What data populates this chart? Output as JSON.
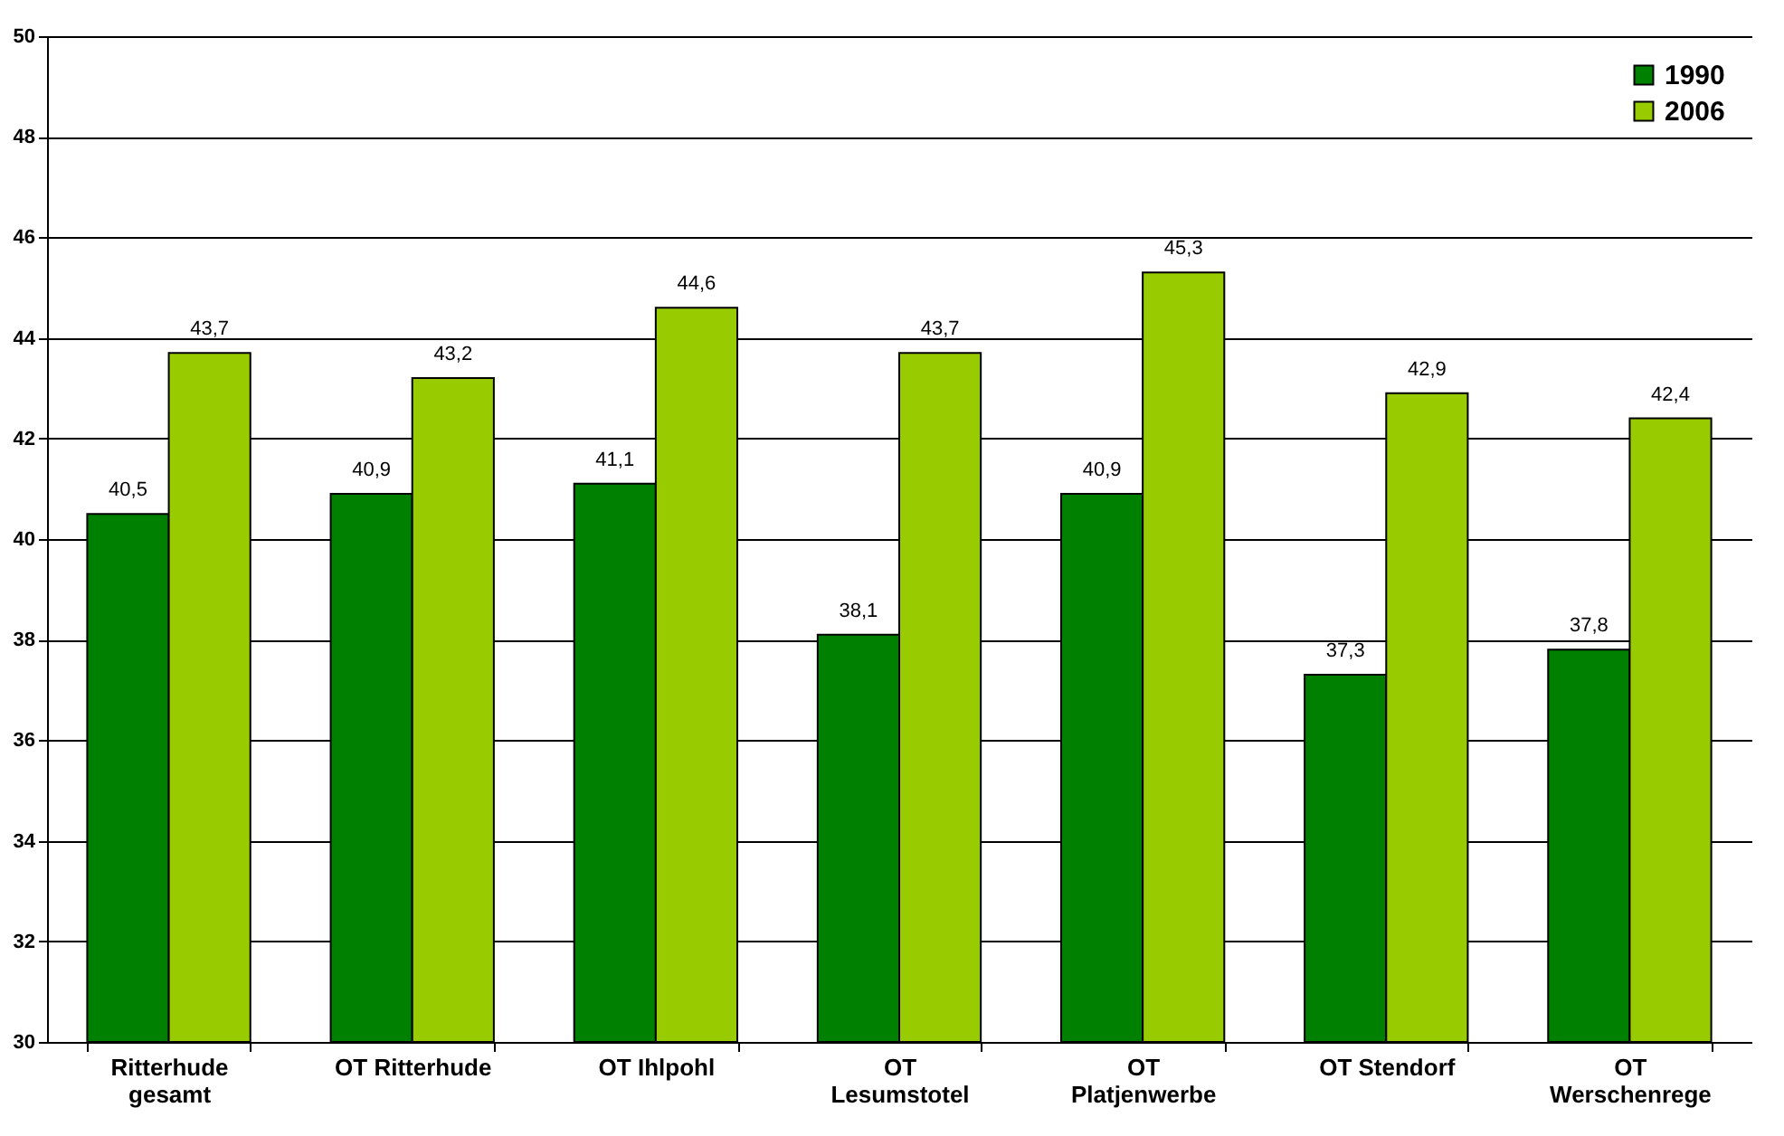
{
  "chart_data": {
    "type": "bar",
    "categories": [
      "Ritterhude gesamt",
      "OT Ritterhude",
      "OT Ihlpohl",
      "OT Lesumstotel",
      "OT Platjenwerbe",
      "OT Stendorf",
      "OT Werschenrege"
    ],
    "series": [
      {
        "name": "1990",
        "color": "#008000",
        "values": [
          40.5,
          40.9,
          41.1,
          38.1,
          40.9,
          37.3,
          37.8
        ],
        "value_labels": [
          "40,5",
          "40,9",
          "41,1",
          "38,1",
          "40,9",
          "37,3",
          "37,8"
        ]
      },
      {
        "name": "2006",
        "color": "#99cc00",
        "values": [
          43.7,
          43.2,
          44.6,
          43.7,
          45.3,
          42.9,
          42.4
        ],
        "value_labels": [
          "43,7",
          "43,2",
          "44,6",
          "43,7",
          "45,3",
          "42,9",
          "42,4"
        ]
      }
    ],
    "ylim": [
      30,
      50
    ],
    "yticks": [
      30,
      32,
      34,
      36,
      38,
      40,
      42,
      44,
      46,
      48,
      50
    ],
    "grid": "y",
    "legend": "top right"
  }
}
